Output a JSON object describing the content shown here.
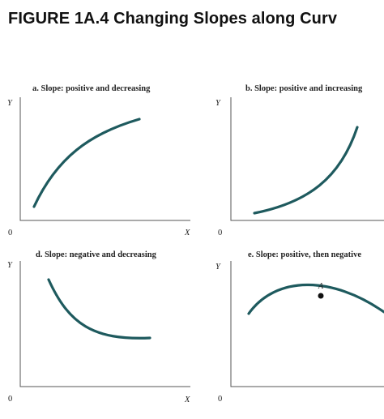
{
  "figure_title": "FIGURE 1A.4  Changing Slopes along Curv",
  "colors": {
    "curve": "#1e5a5e",
    "axis": "#555555",
    "text": "#222222"
  },
  "panels": {
    "a": {
      "title": "a. Slope: positive and decreasing",
      "y_label": "Y",
      "x_label": "X",
      "origin_label": "0"
    },
    "b": {
      "title": "b. Slope: positive and increasing",
      "y_label": "Y",
      "x_label": "",
      "origin_label": "0"
    },
    "d": {
      "title": "d. Slope: negative and decreasing",
      "y_label": "Y",
      "x_label": "X",
      "origin_label": "0"
    },
    "e": {
      "title": "e. Slope: positive, then negative",
      "y_label": "Y",
      "x_label": "",
      "origin_label": "0",
      "point_label": "A"
    }
  }
}
